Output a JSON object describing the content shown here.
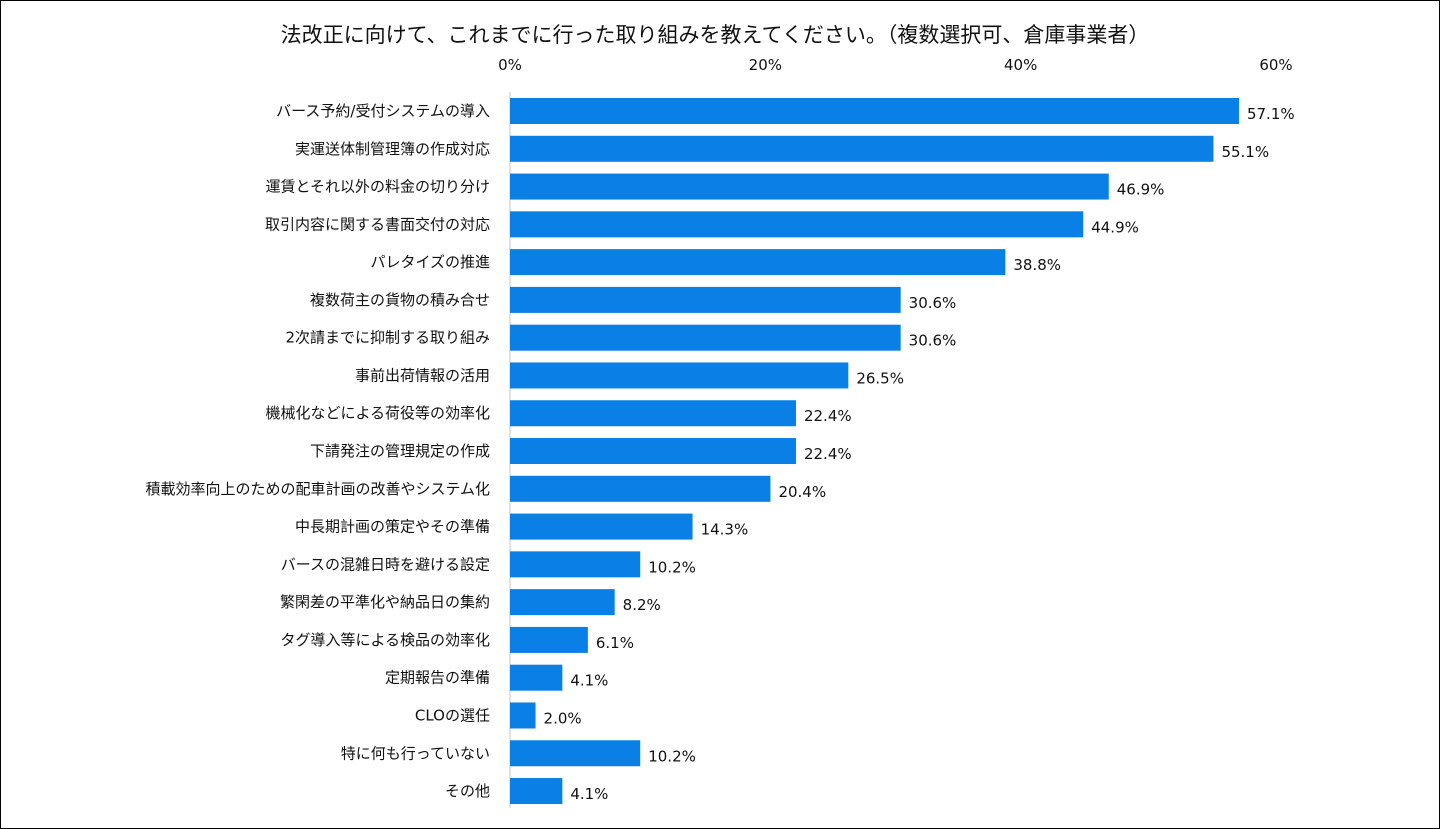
{
  "chart_data": {
    "type": "bar",
    "orientation": "horizontal",
    "title": "法改正に向けて、これまでに行った取り組みを教えてください。（複数選択可、倉庫事業者）",
    "xlabel": "",
    "ylabel": "",
    "xlim": [
      0,
      60
    ],
    "x_ticks": [
      "0%",
      "20%",
      "40%",
      "60%"
    ],
    "x_tick_values": [
      0,
      20,
      40,
      60
    ],
    "tick_position": "top",
    "grid": false,
    "bar_color": "#0A7FE6",
    "categories": [
      "バース予約/受付システムの導入",
      "実運送体制管理簿の作成対応",
      "運賃とそれ以外の料金の切り分け",
      "取引内容に関する書面交付の対応",
      "パレタイズの推進",
      "複数荷主の貨物の積み合せ",
      "2次請までに抑制する取り組み",
      "事前出荷情報の活用",
      "機械化などによる荷役等の効率化",
      "下請発注の管理規定の作成",
      "積載効率向上のための配車計画の改善やシステム化",
      "中長期計画の策定やその準備",
      "バースの混雑日時を避ける設定",
      "繁閑差の平準化や納品日の集約",
      "タグ導入等による検品の効率化",
      "定期報告の準備",
      "CLOの選任",
      "特に何も行っていない",
      "その他"
    ],
    "values": [
      57.1,
      55.1,
      46.9,
      44.9,
      38.8,
      30.6,
      30.6,
      26.5,
      22.4,
      22.4,
      20.4,
      14.3,
      10.2,
      8.2,
      6.1,
      4.1,
      2.0,
      10.2,
      4.1
    ],
    "value_labels": [
      "57.1%",
      "55.1%",
      "46.9%",
      "44.9%",
      "38.8%",
      "30.6%",
      "30.6%",
      "26.5%",
      "22.4%",
      "22.4%",
      "20.4%",
      "14.3%",
      "10.2%",
      "8.2%",
      "6.1%",
      "4.1%",
      "2.0%",
      "10.2%",
      "4.1%"
    ]
  }
}
